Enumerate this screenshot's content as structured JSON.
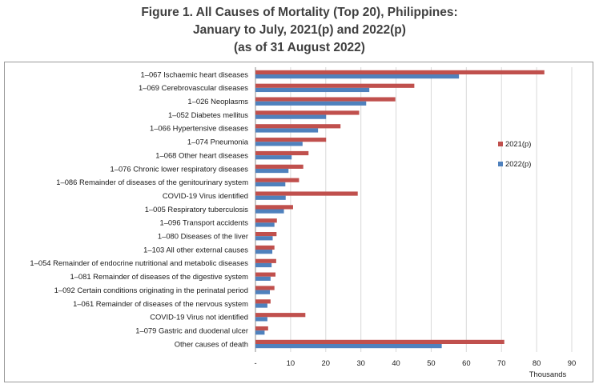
{
  "title": {
    "line1": "Figure 1. All Causes of Mortality (Top 20), Philippines:",
    "line2": "January to July, 2021(p) and 2022(p)",
    "line3": "(as of 31 August 2022)"
  },
  "colors": {
    "series_2021": "#c0504d",
    "series_2022": "#4f81bd",
    "grid": "#d9d9d9"
  },
  "chart_data": {
    "type": "bar",
    "orientation": "horizontal",
    "xlabel": "Thousands",
    "xlim": [
      0,
      90
    ],
    "x_ticks": [
      "-",
      "10",
      "20",
      "30",
      "40",
      "50",
      "60",
      "70",
      "80",
      "90"
    ],
    "grid": true,
    "legend_position": "right",
    "categories": [
      "1–067 Ischaemic heart diseases",
      "1–069 Cerebrovascular diseases",
      "1–026 Neoplasms",
      "1–052 Diabetes mellitus",
      "1–066 Hypertensive diseases",
      "1–074 Pneumonia",
      "1–068 Other heart diseases",
      "1–076 Chronic lower respiratory diseases",
      "1–086 Remainder of diseases of the genitourinary system",
      "COVID-19 Virus identified",
      "1–005 Respiratory tuberculosis",
      "1–096 Transport accidents",
      "1–080 Diseases of the liver",
      "1–103 All other external causes",
      "1–054 Remainder of endocrine nutritional and metabolic diseases",
      "1–081 Remainder of diseases of the digestive system",
      "1–092 Certain conditions originating in the perinatal period",
      "1–061 Remainder of diseases of the nervous system",
      "COVID-19 Virus not identified",
      "1–079 Gastric and duodenal ulcer",
      "Other causes of death"
    ],
    "series": [
      {
        "name": "2021(p)",
        "values": [
          82.2,
          45.2,
          39.8,
          29.5,
          24.2,
          20.1,
          15.1,
          13.6,
          12.4,
          29.1,
          10.7,
          6.1,
          6.0,
          5.4,
          5.9,
          5.7,
          5.4,
          4.3,
          14.2,
          3.6,
          70.8
        ]
      },
      {
        "name": "2022(p)",
        "values": [
          57.9,
          32.4,
          31.5,
          20.1,
          17.8,
          13.4,
          10.3,
          9.4,
          8.5,
          8.6,
          8.1,
          5.4,
          4.9,
          4.8,
          4.6,
          4.3,
          4.1,
          3.4,
          3.4,
          2.6,
          53.0
        ]
      }
    ]
  }
}
